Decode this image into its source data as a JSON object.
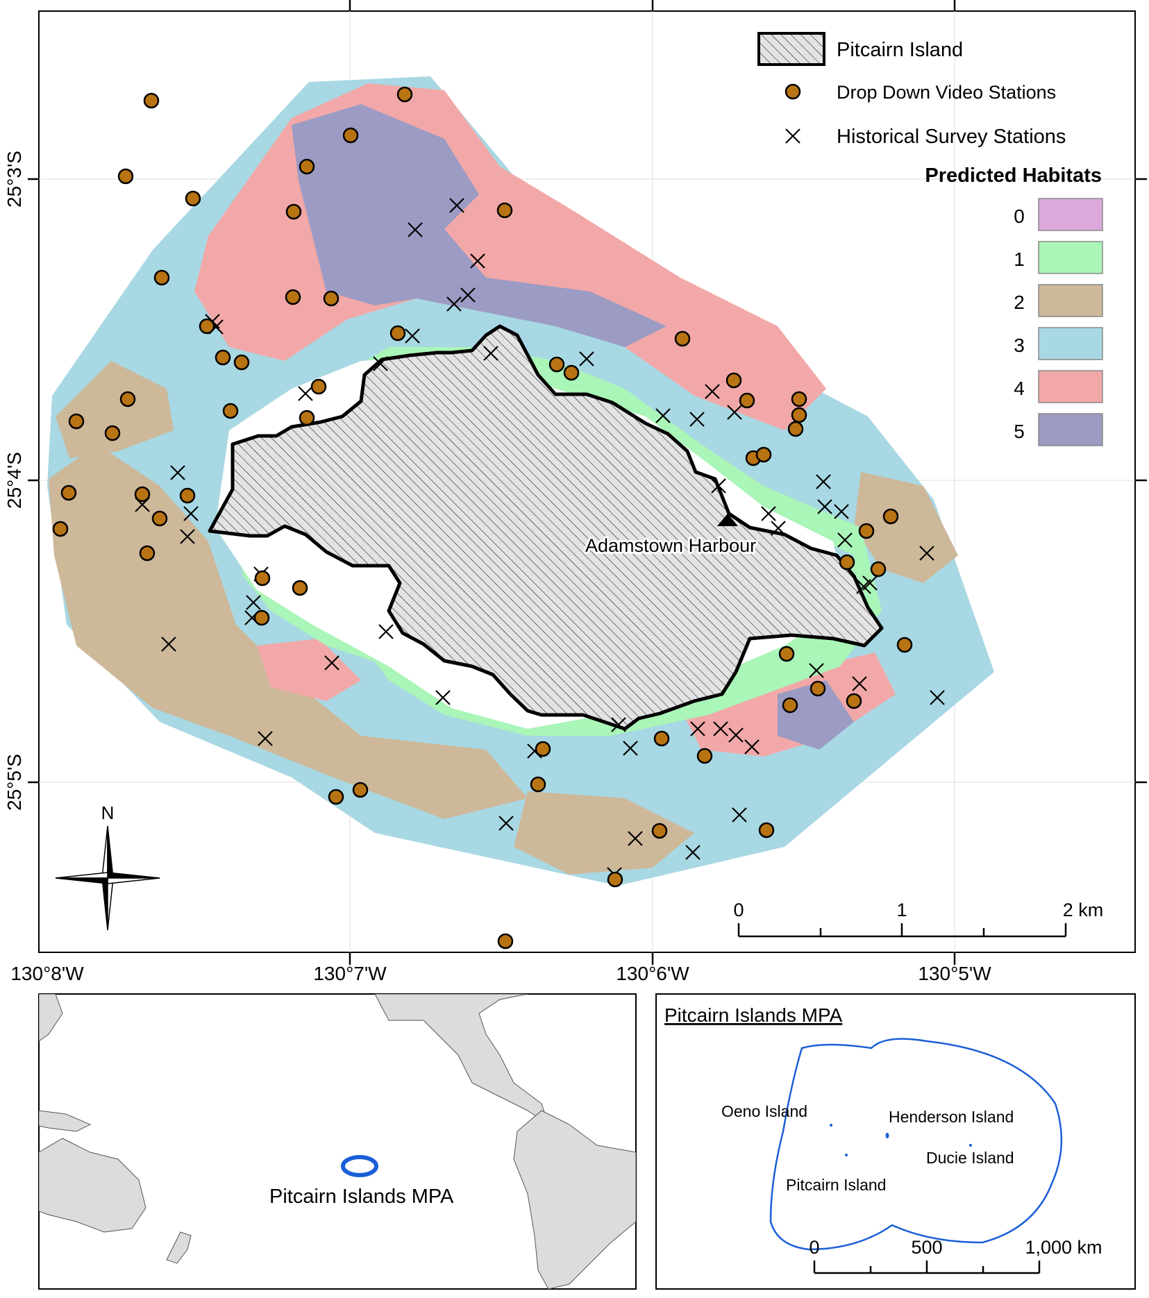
{
  "main_map": {
    "legend": {
      "island_label": "Pitcairn Island",
      "video_label": "Drop Down Video Stations",
      "historical_label": "Historical Survey Stations",
      "habitats_title": "Predicted Habitats",
      "habitats": [
        {
          "code": "0",
          "color": "#dca9dc"
        },
        {
          "code": "1",
          "color": "#aaf5b8"
        },
        {
          "code": "2",
          "color": "#cdb89a"
        },
        {
          "code": "3",
          "color": "#a8d8e3"
        },
        {
          "code": "4",
          "color": "#f2a8a8"
        },
        {
          "code": "5",
          "color": "#9b9bc4"
        }
      ]
    },
    "harbour_label": "Adamstown Harbour",
    "lat_labels": [
      "25°3'S",
      "25°4'S",
      "25°5'S"
    ],
    "lon_labels": [
      "130°8'W",
      "130°7'W",
      "130°6'W",
      "130°5'W"
    ],
    "scale": {
      "ticks": [
        "0",
        "1",
        "2 km"
      ]
    },
    "north_label": "N",
    "colors": {
      "video_station": "#b87312",
      "island_fill": "#e3e3e3",
      "outline": "#000000"
    }
  },
  "inset_world": {
    "label": "Pitcairn Islands MPA",
    "colors": {
      "land": "#dcdcdc",
      "mpa": "#1b5fd6"
    }
  },
  "inset_mpa": {
    "title": "Pitcairn Islands MPA",
    "islands": [
      "Oeno Island",
      "Henderson Island",
      "Ducie Island",
      "Pitcairn Island"
    ],
    "scale": {
      "ticks": [
        "0",
        "500",
        "1,000 km"
      ]
    }
  }
}
